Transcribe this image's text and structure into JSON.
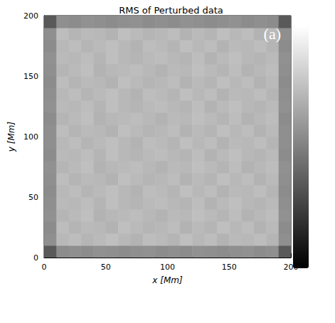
{
  "chart_data": {
    "type": "heatmap",
    "title": "RMS of Perturbed data",
    "panel_label": "(a)",
    "xlabel": "x [Mm]",
    "ylabel": "y [Mm]",
    "xlim": [
      0,
      200
    ],
    "xticks": [
      0,
      50,
      100,
      150,
      200
    ],
    "ylim": [
      0,
      200
    ],
    "yticks": [
      0,
      50,
      100,
      150,
      200
    ],
    "grid": false,
    "x_edges": [
      0,
      10,
      20,
      30,
      40,
      50,
      60,
      70,
      80,
      90,
      100,
      110,
      120,
      130,
      140,
      150,
      160,
      170,
      180,
      190,
      200
    ],
    "y_edges": [
      0,
      10,
      20,
      30,
      40,
      50,
      60,
      70,
      80,
      90,
      100,
      110,
      120,
      130,
      140,
      150,
      160,
      170,
      180,
      190,
      200
    ],
    "colorbar": {
      "range": [
        0,
        1
      ]
    },
    "cells": [
      [
        0.35,
        0.55,
        0.56,
        0.55,
        0.57,
        0.56,
        0.55,
        0.56,
        0.57,
        0.55,
        0.56,
        0.55,
        0.57,
        0.56,
        0.55,
        0.56,
        0.57,
        0.55,
        0.56,
        0.35
      ],
      [
        0.56,
        0.72,
        0.74,
        0.71,
        0.73,
        0.75,
        0.72,
        0.7,
        0.74,
        0.73,
        0.71,
        0.75,
        0.72,
        0.74,
        0.7,
        0.73,
        0.72,
        0.74,
        0.71,
        0.56
      ],
      [
        0.55,
        0.74,
        0.71,
        0.73,
        0.72,
        0.7,
        0.75,
        0.73,
        0.71,
        0.72,
        0.74,
        0.7,
        0.73,
        0.71,
        0.75,
        0.72,
        0.74,
        0.7,
        0.73,
        0.55
      ],
      [
        0.57,
        0.71,
        0.73,
        0.75,
        0.7,
        0.72,
        0.73,
        0.74,
        0.72,
        0.7,
        0.73,
        0.72,
        0.75,
        0.73,
        0.71,
        0.74,
        0.7,
        0.72,
        0.74,
        0.57
      ],
      [
        0.56,
        0.73,
        0.72,
        0.74,
        0.71,
        0.75,
        0.72,
        0.71,
        0.73,
        0.74,
        0.72,
        0.71,
        0.74,
        0.7,
        0.73,
        0.75,
        0.72,
        0.71,
        0.73,
        0.56
      ],
      [
        0.55,
        0.72,
        0.74,
        0.71,
        0.73,
        0.75,
        0.72,
        0.7,
        0.74,
        0.73,
        0.71,
        0.75,
        0.72,
        0.74,
        0.7,
        0.73,
        0.72,
        0.74,
        0.71,
        0.55
      ],
      [
        0.56,
        0.74,
        0.71,
        0.73,
        0.72,
        0.7,
        0.75,
        0.73,
        0.71,
        0.72,
        0.74,
        0.7,
        0.73,
        0.71,
        0.75,
        0.72,
        0.74,
        0.7,
        0.73,
        0.56
      ],
      [
        0.57,
        0.71,
        0.73,
        0.75,
        0.7,
        0.72,
        0.73,
        0.74,
        0.72,
        0.7,
        0.73,
        0.72,
        0.75,
        0.73,
        0.71,
        0.74,
        0.7,
        0.72,
        0.74,
        0.57
      ],
      [
        0.55,
        0.73,
        0.72,
        0.74,
        0.71,
        0.75,
        0.72,
        0.71,
        0.73,
        0.74,
        0.72,
        0.71,
        0.74,
        0.7,
        0.73,
        0.75,
        0.72,
        0.71,
        0.73,
        0.55
      ],
      [
        0.56,
        0.72,
        0.74,
        0.71,
        0.73,
        0.75,
        0.72,
        0.7,
        0.74,
        0.73,
        0.71,
        0.75,
        0.72,
        0.74,
        0.7,
        0.73,
        0.72,
        0.74,
        0.71,
        0.56
      ],
      [
        0.56,
        0.74,
        0.71,
        0.73,
        0.72,
        0.7,
        0.75,
        0.73,
        0.71,
        0.72,
        0.74,
        0.7,
        0.73,
        0.71,
        0.75,
        0.72,
        0.74,
        0.7,
        0.73,
        0.56
      ],
      [
        0.55,
        0.71,
        0.73,
        0.75,
        0.7,
        0.72,
        0.73,
        0.74,
        0.72,
        0.7,
        0.73,
        0.72,
        0.75,
        0.73,
        0.71,
        0.74,
        0.7,
        0.72,
        0.74,
        0.55
      ],
      [
        0.57,
        0.73,
        0.72,
        0.74,
        0.71,
        0.75,
        0.72,
        0.71,
        0.73,
        0.74,
        0.72,
        0.71,
        0.74,
        0.7,
        0.73,
        0.75,
        0.72,
        0.71,
        0.73,
        0.57
      ],
      [
        0.56,
        0.72,
        0.74,
        0.71,
        0.73,
        0.75,
        0.72,
        0.7,
        0.74,
        0.73,
        0.71,
        0.75,
        0.72,
        0.74,
        0.7,
        0.73,
        0.72,
        0.74,
        0.71,
        0.56
      ],
      [
        0.55,
        0.74,
        0.71,
        0.73,
        0.72,
        0.7,
        0.75,
        0.73,
        0.71,
        0.72,
        0.74,
        0.7,
        0.73,
        0.71,
        0.75,
        0.72,
        0.74,
        0.7,
        0.73,
        0.55
      ],
      [
        0.56,
        0.71,
        0.73,
        0.75,
        0.7,
        0.72,
        0.73,
        0.74,
        0.72,
        0.7,
        0.73,
        0.72,
        0.75,
        0.73,
        0.71,
        0.74,
        0.7,
        0.72,
        0.74,
        0.56
      ],
      [
        0.57,
        0.73,
        0.72,
        0.74,
        0.71,
        0.75,
        0.72,
        0.71,
        0.73,
        0.74,
        0.72,
        0.71,
        0.74,
        0.7,
        0.73,
        0.75,
        0.72,
        0.71,
        0.73,
        0.57
      ],
      [
        0.55,
        0.72,
        0.74,
        0.71,
        0.73,
        0.75,
        0.72,
        0.7,
        0.74,
        0.73,
        0.71,
        0.75,
        0.72,
        0.74,
        0.7,
        0.73,
        0.72,
        0.74,
        0.71,
        0.55
      ],
      [
        0.56,
        0.74,
        0.71,
        0.73,
        0.72,
        0.7,
        0.75,
        0.73,
        0.71,
        0.72,
        0.74,
        0.7,
        0.73,
        0.71,
        0.75,
        0.72,
        0.74,
        0.7,
        0.73,
        0.56
      ],
      [
        0.35,
        0.56,
        0.55,
        0.57,
        0.56,
        0.55,
        0.56,
        0.57,
        0.55,
        0.56,
        0.55,
        0.57,
        0.56,
        0.55,
        0.56,
        0.57,
        0.55,
        0.56,
        0.55,
        0.35
      ]
    ]
  }
}
